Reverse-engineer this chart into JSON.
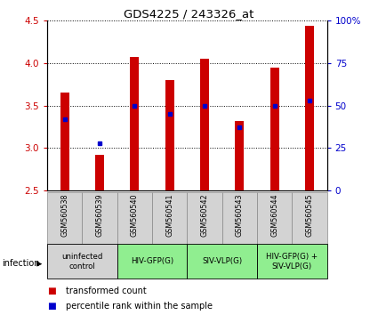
{
  "title": "GDS4225 / 243326_at",
  "samples": [
    "GSM560538",
    "GSM560539",
    "GSM560540",
    "GSM560541",
    "GSM560542",
    "GSM560543",
    "GSM560544",
    "GSM560545"
  ],
  "transformed_counts": [
    3.65,
    2.92,
    4.07,
    3.8,
    4.05,
    3.32,
    3.95,
    4.44
  ],
  "percentile_ranks_pct": [
    42,
    28,
    50,
    45,
    50,
    37,
    50,
    53
  ],
  "ylim_left": [
    2.5,
    4.5
  ],
  "ylim_right": [
    0,
    100
  ],
  "yticks_left": [
    2.5,
    3.0,
    3.5,
    4.0,
    4.5
  ],
  "yticks_right": [
    0,
    25,
    50,
    75,
    100
  ],
  "bar_color": "#cc0000",
  "dot_color": "#0000cc",
  "bar_bottom": 2.5,
  "groups": [
    {
      "label": "uninfected\ncontrol",
      "start": 0,
      "end": 2,
      "color": "#d3d3d3"
    },
    {
      "label": "HIV-GFP(G)",
      "start": 2,
      "end": 4,
      "color": "#90ee90"
    },
    {
      "label": "SIV-VLP(G)",
      "start": 4,
      "end": 6,
      "color": "#90ee90"
    },
    {
      "label": "HIV-GFP(G) +\nSIV-VLP(G)",
      "start": 6,
      "end": 8,
      "color": "#90ee90"
    }
  ],
  "legend_bar_label": "transformed count",
  "legend_dot_label": "percentile rank within the sample",
  "infection_label": "infection",
  "background_color": "#ffffff",
  "bar_width": 0.25,
  "tick_color_left": "#cc0000",
  "tick_color_right": "#0000cc",
  "sample_box_color": "#d3d3d3",
  "sample_box_edge": "#888888"
}
